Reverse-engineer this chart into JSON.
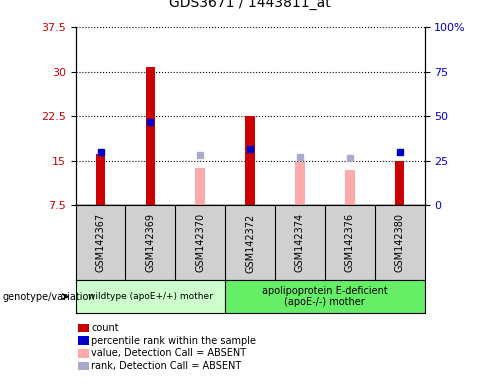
{
  "title": "GDS3671 / 1443811_at",
  "samples": [
    "GSM142367",
    "GSM142369",
    "GSM142370",
    "GSM142372",
    "GSM142374",
    "GSM142376",
    "GSM142380"
  ],
  "ylim_left": [
    7.5,
    37.5
  ],
  "ylim_right": [
    0,
    100
  ],
  "yticks_left": [
    7.5,
    15.0,
    22.5,
    30.0,
    37.5
  ],
  "yticks_right": [
    0,
    25,
    50,
    75,
    100
  ],
  "ytick_labels_left": [
    "7.5",
    "15",
    "22.5",
    "30",
    "37.5"
  ],
  "ytick_labels_right": [
    "0",
    "25",
    "50",
    "75",
    "100%"
  ],
  "count_values": [
    16.2,
    30.8,
    null,
    22.5,
    null,
    null,
    15.0
  ],
  "count_color": "#cc0000",
  "absent_value_values": [
    null,
    null,
    13.8,
    null,
    14.8,
    13.5,
    null
  ],
  "absent_value_color": "#ffaaaa",
  "percentile_values": [
    16.5,
    21.5,
    null,
    17.0,
    null,
    null,
    16.5
  ],
  "percentile_color": "#0000cc",
  "absent_rank_values": [
    null,
    null,
    16.0,
    null,
    15.7,
    15.5,
    null
  ],
  "absent_rank_color": "#aaaacc",
  "group1_indices": [
    0,
    1,
    2
  ],
  "group2_indices": [
    3,
    4,
    5,
    6
  ],
  "group1_label": "wildtype (apoE+/+) mother",
  "group2_label": "apolipoprotein E-deficient\n(apoE-/-) mother",
  "group_label_text": "genotype/variation",
  "group1_color": "#ccffcc",
  "group2_color": "#66ee66",
  "sample_bg_color": "#d0d0d0",
  "plot_bg_color": "#ffffff",
  "grid_linestyle": "dotted",
  "legend_items": [
    {
      "label": "count",
      "color": "#cc0000"
    },
    {
      "label": "percentile rank within the sample",
      "color": "#0000cc"
    },
    {
      "label": "value, Detection Call = ABSENT",
      "color": "#ffaaaa"
    },
    {
      "label": "rank, Detection Call = ABSENT",
      "color": "#aaaacc"
    }
  ]
}
